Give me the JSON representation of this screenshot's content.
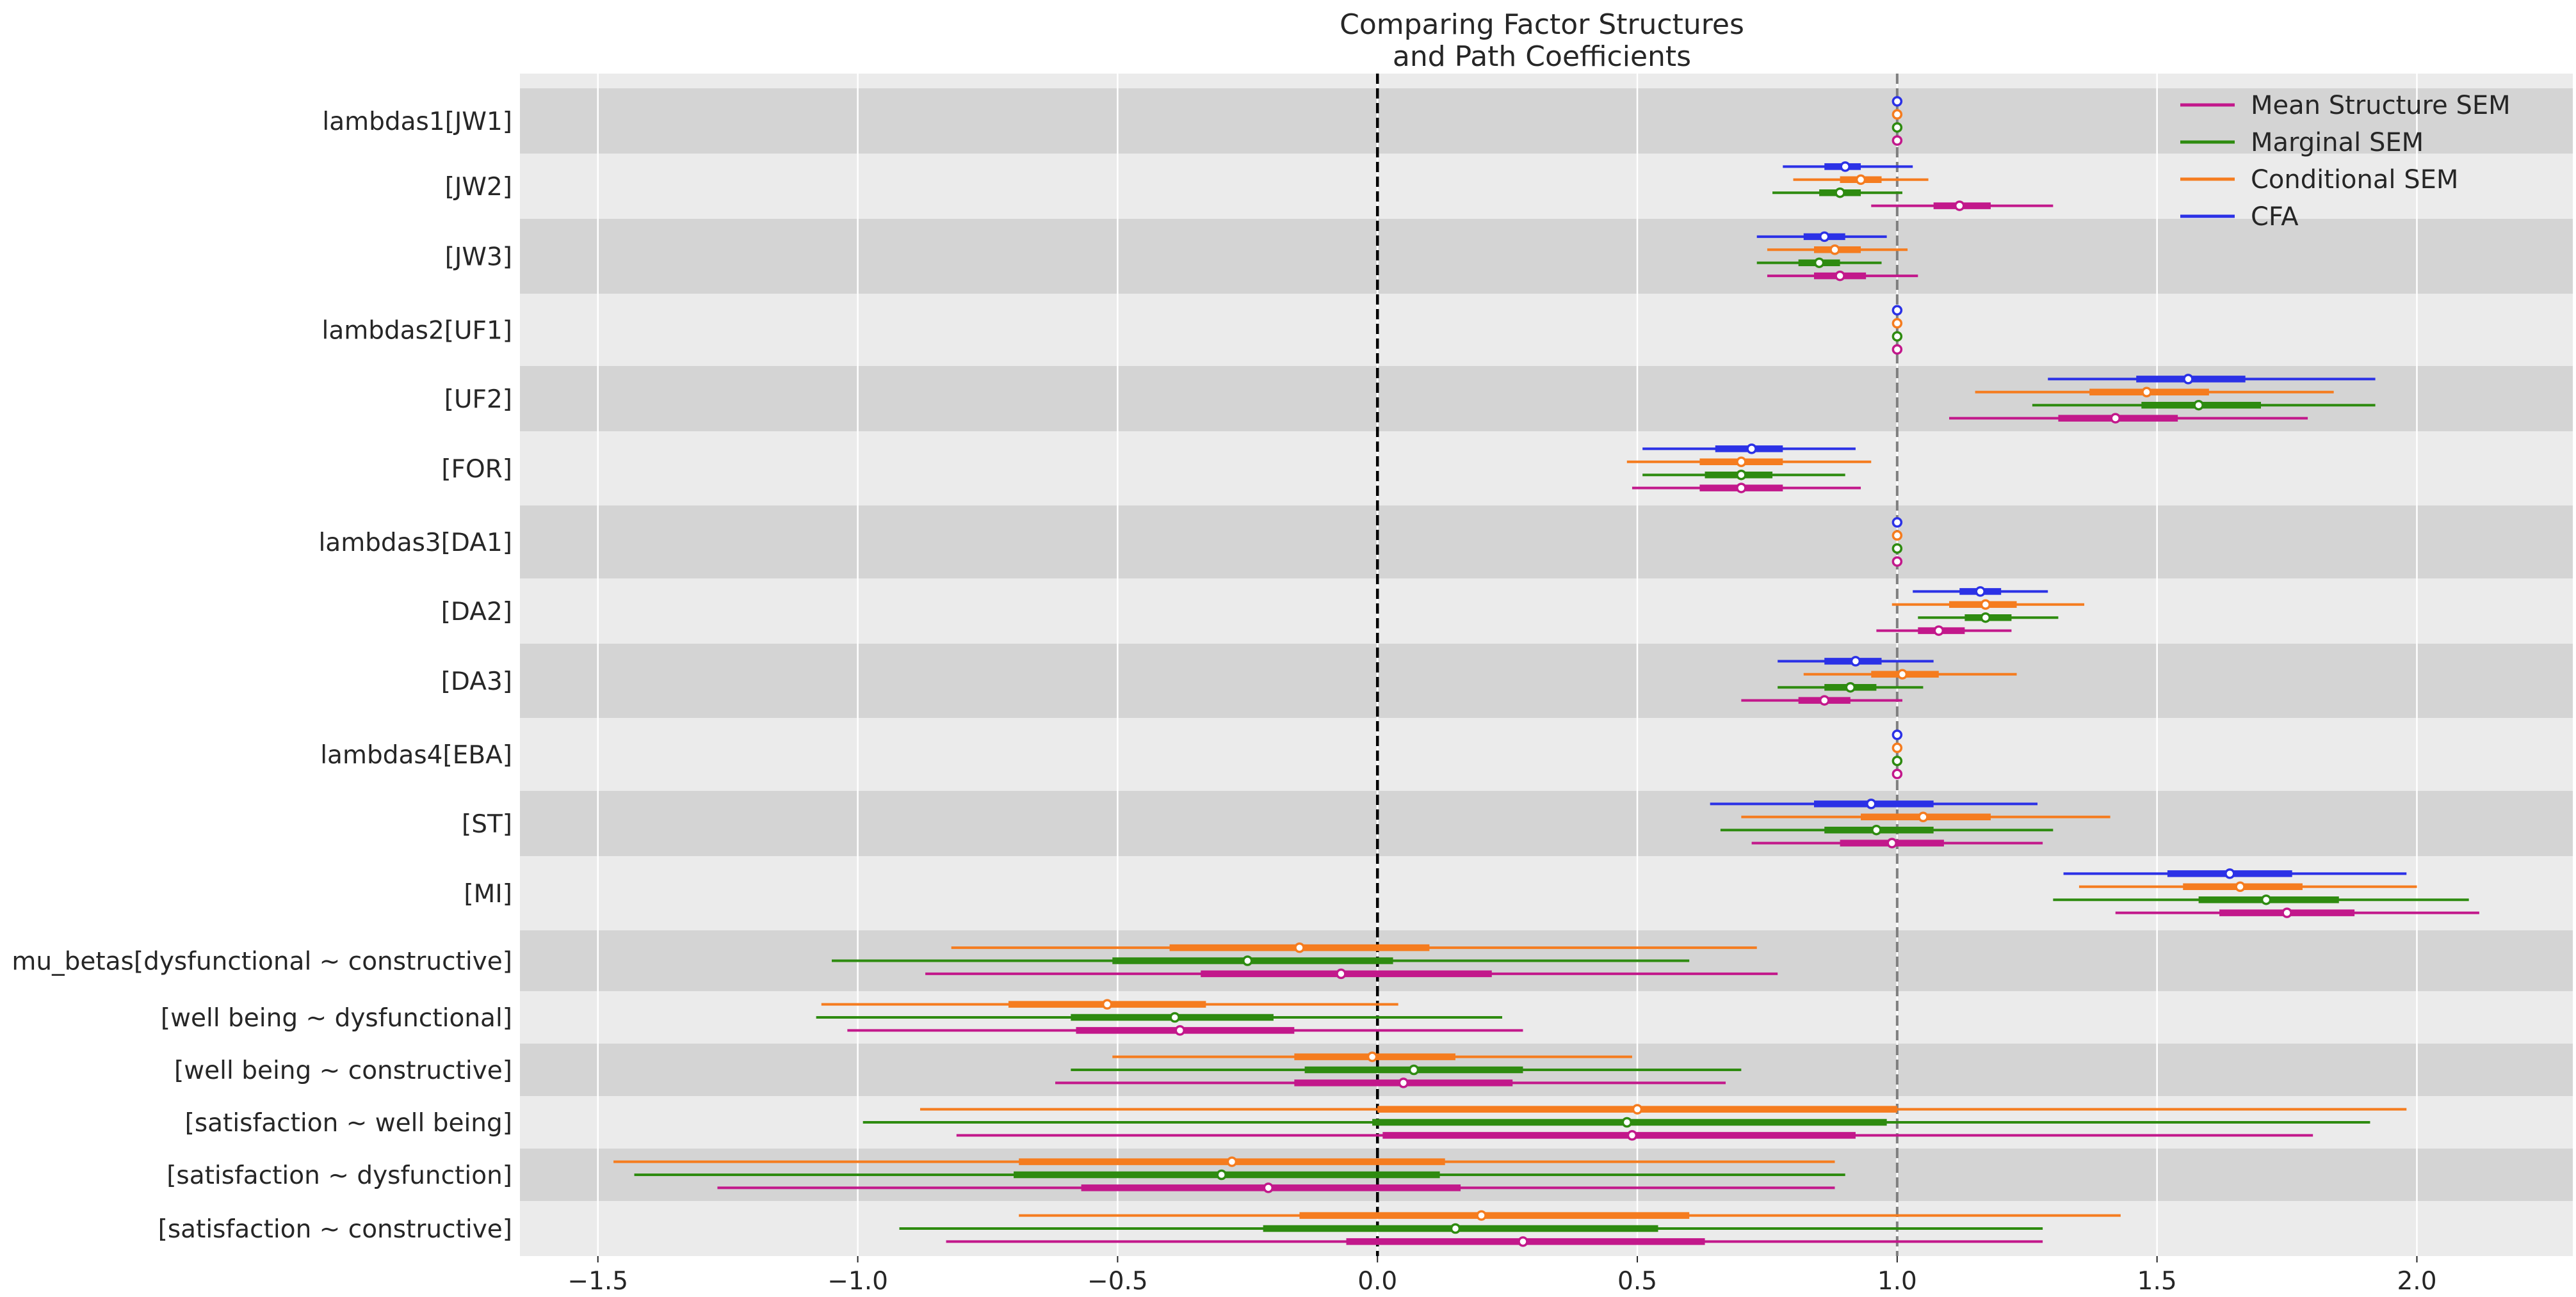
{
  "chart_data": {
    "type": "forest",
    "title": "Comparing Factor Structures\nand Path Coefficients",
    "xlim": [
      -1.65,
      2.3
    ],
    "xticks": [
      -1.5,
      -1.0,
      -0.5,
      0.0,
      0.5,
      1.0,
      1.5,
      2.0
    ],
    "xtick_labels": [
      "−1.5",
      "−1.0",
      "−0.5",
      "0.0",
      "0.5",
      "1.0",
      "1.5",
      "2.0"
    ],
    "reference_lines": [
      {
        "x": 0.0,
        "color": "#000000",
        "style": "dashed"
      },
      {
        "x": 1.0,
        "color": "#7f7f7f",
        "style": "dashed"
      }
    ],
    "grid": true,
    "legend_position": "top-right",
    "series": [
      {
        "name": "Mean Structure SEM",
        "color": "#c2188b"
      },
      {
        "name": "Marginal SEM",
        "color": "#2e8b10"
      },
      {
        "name": "Conditional SEM",
        "color": "#f57c1f"
      },
      {
        "name": "CFA",
        "color": "#2b31e6"
      }
    ],
    "rows": [
      {
        "label": "lambdas1[JW1]",
        "estimates": [
          {
            "series": "CFA",
            "mean": 1.0,
            "hdi94": [
              1.0,
              1.0
            ],
            "iqr": [
              1.0,
              1.0
            ]
          },
          {
            "series": "Conditional SEM",
            "mean": 1.0,
            "hdi94": [
              1.0,
              1.0
            ],
            "iqr": [
              1.0,
              1.0
            ]
          },
          {
            "series": "Marginal SEM",
            "mean": 1.0,
            "hdi94": [
              1.0,
              1.0
            ],
            "iqr": [
              1.0,
              1.0
            ]
          },
          {
            "series": "Mean Structure SEM",
            "mean": 1.0,
            "hdi94": [
              1.0,
              1.0
            ],
            "iqr": [
              1.0,
              1.0
            ]
          }
        ]
      },
      {
        "label": "[JW2]",
        "estimates": [
          {
            "series": "CFA",
            "mean": 0.9,
            "hdi94": [
              0.78,
              1.03
            ],
            "iqr": [
              0.86,
              0.93
            ]
          },
          {
            "series": "Conditional SEM",
            "mean": 0.93,
            "hdi94": [
              0.8,
              1.06
            ],
            "iqr": [
              0.89,
              0.97
            ]
          },
          {
            "series": "Marginal SEM",
            "mean": 0.89,
            "hdi94": [
              0.76,
              1.01
            ],
            "iqr": [
              0.85,
              0.93
            ]
          },
          {
            "series": "Mean Structure SEM",
            "mean": 1.12,
            "hdi94": [
              0.95,
              1.3
            ],
            "iqr": [
              1.07,
              1.18
            ]
          }
        ]
      },
      {
        "label": "[JW3]",
        "estimates": [
          {
            "series": "CFA",
            "mean": 0.86,
            "hdi94": [
              0.73,
              0.98
            ],
            "iqr": [
              0.82,
              0.9
            ]
          },
          {
            "series": "Conditional SEM",
            "mean": 0.88,
            "hdi94": [
              0.75,
              1.02
            ],
            "iqr": [
              0.84,
              0.93
            ]
          },
          {
            "series": "Marginal SEM",
            "mean": 0.85,
            "hdi94": [
              0.73,
              0.97
            ],
            "iqr": [
              0.81,
              0.89
            ]
          },
          {
            "series": "Mean Structure SEM",
            "mean": 0.89,
            "hdi94": [
              0.75,
              1.04
            ],
            "iqr": [
              0.84,
              0.94
            ]
          }
        ]
      },
      {
        "label": "lambdas2[UF1]",
        "estimates": [
          {
            "series": "CFA",
            "mean": 1.0,
            "hdi94": [
              1.0,
              1.0
            ],
            "iqr": [
              1.0,
              1.0
            ]
          },
          {
            "series": "Conditional SEM",
            "mean": 1.0,
            "hdi94": [
              1.0,
              1.0
            ],
            "iqr": [
              1.0,
              1.0
            ]
          },
          {
            "series": "Marginal SEM",
            "mean": 1.0,
            "hdi94": [
              1.0,
              1.0
            ],
            "iqr": [
              1.0,
              1.0
            ]
          },
          {
            "series": "Mean Structure SEM",
            "mean": 1.0,
            "hdi94": [
              1.0,
              1.0
            ],
            "iqr": [
              1.0,
              1.0
            ]
          }
        ]
      },
      {
        "label": "[UF2]",
        "estimates": [
          {
            "series": "CFA",
            "mean": 1.56,
            "hdi94": [
              1.29,
              1.92
            ],
            "iqr": [
              1.46,
              1.67
            ]
          },
          {
            "series": "Conditional SEM",
            "mean": 1.48,
            "hdi94": [
              1.15,
              1.84
            ],
            "iqr": [
              1.37,
              1.6
            ]
          },
          {
            "series": "Marginal SEM",
            "mean": 1.58,
            "hdi94": [
              1.26,
              1.92
            ],
            "iqr": [
              1.47,
              1.7
            ]
          },
          {
            "series": "Mean Structure SEM",
            "mean": 1.42,
            "hdi94": [
              1.1,
              1.79
            ],
            "iqr": [
              1.31,
              1.54
            ]
          }
        ]
      },
      {
        "label": "[FOR]",
        "estimates": [
          {
            "series": "CFA",
            "mean": 0.72,
            "hdi94": [
              0.51,
              0.92
            ],
            "iqr": [
              0.65,
              0.78
            ]
          },
          {
            "series": "Conditional SEM",
            "mean": 0.7,
            "hdi94": [
              0.48,
              0.95
            ],
            "iqr": [
              0.62,
              0.78
            ]
          },
          {
            "series": "Marginal SEM",
            "mean": 0.7,
            "hdi94": [
              0.51,
              0.9
            ],
            "iqr": [
              0.63,
              0.76
            ]
          },
          {
            "series": "Mean Structure SEM",
            "mean": 0.7,
            "hdi94": [
              0.49,
              0.93
            ],
            "iqr": [
              0.62,
              0.78
            ]
          }
        ]
      },
      {
        "label": "lambdas3[DA1]",
        "estimates": [
          {
            "series": "CFA",
            "mean": 1.0,
            "hdi94": [
              1.0,
              1.0
            ],
            "iqr": [
              1.0,
              1.0
            ]
          },
          {
            "series": "Conditional SEM",
            "mean": 1.0,
            "hdi94": [
              1.0,
              1.0
            ],
            "iqr": [
              1.0,
              1.0
            ]
          },
          {
            "series": "Marginal SEM",
            "mean": 1.0,
            "hdi94": [
              1.0,
              1.0
            ],
            "iqr": [
              1.0,
              1.0
            ]
          },
          {
            "series": "Mean Structure SEM",
            "mean": 1.0,
            "hdi94": [
              1.0,
              1.0
            ],
            "iqr": [
              1.0,
              1.0
            ]
          }
        ]
      },
      {
        "label": "[DA2]",
        "estimates": [
          {
            "series": "CFA",
            "mean": 1.16,
            "hdi94": [
              1.03,
              1.29
            ],
            "iqr": [
              1.12,
              1.2
            ]
          },
          {
            "series": "Conditional SEM",
            "mean": 1.17,
            "hdi94": [
              0.99,
              1.36
            ],
            "iqr": [
              1.1,
              1.23
            ]
          },
          {
            "series": "Marginal SEM",
            "mean": 1.17,
            "hdi94": [
              1.04,
              1.31
            ],
            "iqr": [
              1.13,
              1.22
            ]
          },
          {
            "series": "Mean Structure SEM",
            "mean": 1.08,
            "hdi94": [
              0.96,
              1.22
            ],
            "iqr": [
              1.04,
              1.13
            ]
          }
        ]
      },
      {
        "label": "[DA3]",
        "estimates": [
          {
            "series": "CFA",
            "mean": 0.92,
            "hdi94": [
              0.77,
              1.07
            ],
            "iqr": [
              0.86,
              0.97
            ]
          },
          {
            "series": "Conditional SEM",
            "mean": 1.01,
            "hdi94": [
              0.82,
              1.23
            ],
            "iqr": [
              0.95,
              1.08
            ]
          },
          {
            "series": "Marginal SEM",
            "mean": 0.91,
            "hdi94": [
              0.77,
              1.05
            ],
            "iqr": [
              0.86,
              0.96
            ]
          },
          {
            "series": "Mean Structure SEM",
            "mean": 0.86,
            "hdi94": [
              0.7,
              1.01
            ],
            "iqr": [
              0.81,
              0.91
            ]
          }
        ]
      },
      {
        "label": "lambdas4[EBA]",
        "estimates": [
          {
            "series": "CFA",
            "mean": 1.0,
            "hdi94": [
              1.0,
              1.0
            ],
            "iqr": [
              1.0,
              1.0
            ]
          },
          {
            "series": "Conditional SEM",
            "mean": 1.0,
            "hdi94": [
              1.0,
              1.0
            ],
            "iqr": [
              1.0,
              1.0
            ]
          },
          {
            "series": "Marginal SEM",
            "mean": 1.0,
            "hdi94": [
              1.0,
              1.0
            ],
            "iqr": [
              1.0,
              1.0
            ]
          },
          {
            "series": "Mean Structure SEM",
            "mean": 1.0,
            "hdi94": [
              1.0,
              1.0
            ],
            "iqr": [
              1.0,
              1.0
            ]
          }
        ]
      },
      {
        "label": "[ST]",
        "estimates": [
          {
            "series": "CFA",
            "mean": 0.95,
            "hdi94": [
              0.64,
              1.27
            ],
            "iqr": [
              0.84,
              1.07
            ]
          },
          {
            "series": "Conditional SEM",
            "mean": 1.05,
            "hdi94": [
              0.7,
              1.41
            ],
            "iqr": [
              0.93,
              1.18
            ]
          },
          {
            "series": "Marginal SEM",
            "mean": 0.96,
            "hdi94": [
              0.66,
              1.3
            ],
            "iqr": [
              0.86,
              1.07
            ]
          },
          {
            "series": "Mean Structure SEM",
            "mean": 0.99,
            "hdi94": [
              0.72,
              1.28
            ],
            "iqr": [
              0.89,
              1.09
            ]
          }
        ]
      },
      {
        "label": "[MI]",
        "estimates": [
          {
            "series": "CFA",
            "mean": 1.64,
            "hdi94": [
              1.32,
              1.98
            ],
            "iqr": [
              1.52,
              1.76
            ]
          },
          {
            "series": "Conditional SEM",
            "mean": 1.66,
            "hdi94": [
              1.35,
              2.0
            ],
            "iqr": [
              1.55,
              1.78
            ]
          },
          {
            "series": "Marginal SEM",
            "mean": 1.71,
            "hdi94": [
              1.3,
              2.1
            ],
            "iqr": [
              1.58,
              1.85
            ]
          },
          {
            "series": "Mean Structure SEM",
            "mean": 1.75,
            "hdi94": [
              1.42,
              2.12
            ],
            "iqr": [
              1.62,
              1.88
            ]
          }
        ]
      },
      {
        "label": "mu_betas[dysfunctional ~ constructive]",
        "estimates": [
          {
            "series": "Conditional SEM",
            "mean": -0.15,
            "hdi94": [
              -0.82,
              0.73
            ],
            "iqr": [
              -0.4,
              0.1
            ]
          },
          {
            "series": "Marginal SEM",
            "mean": -0.25,
            "hdi94": [
              -1.05,
              0.6
            ],
            "iqr": [
              -0.51,
              0.03
            ]
          },
          {
            "series": "Mean Structure SEM",
            "mean": -0.07,
            "hdi94": [
              -0.87,
              0.77
            ],
            "iqr": [
              -0.34,
              0.22
            ]
          }
        ]
      },
      {
        "label": "[well being ~ dysfunctional]",
        "estimates": [
          {
            "series": "Conditional SEM",
            "mean": -0.52,
            "hdi94": [
              -1.07,
              0.04
            ],
            "iqr": [
              -0.71,
              -0.33
            ]
          },
          {
            "series": "Marginal SEM",
            "mean": -0.39,
            "hdi94": [
              -1.08,
              0.24
            ],
            "iqr": [
              -0.59,
              -0.2
            ]
          },
          {
            "series": "Mean Structure SEM",
            "mean": -0.38,
            "hdi94": [
              -1.02,
              0.28
            ],
            "iqr": [
              -0.58,
              -0.16
            ]
          }
        ]
      },
      {
        "label": "[well being ~ constructive]",
        "estimates": [
          {
            "series": "Conditional SEM",
            "mean": -0.01,
            "hdi94": [
              -0.51,
              0.49
            ],
            "iqr": [
              -0.16,
              0.15
            ]
          },
          {
            "series": "Marginal SEM",
            "mean": 0.07,
            "hdi94": [
              -0.59,
              0.7
            ],
            "iqr": [
              -0.14,
              0.28
            ]
          },
          {
            "series": "Mean Structure SEM",
            "mean": 0.05,
            "hdi94": [
              -0.62,
              0.67
            ],
            "iqr": [
              -0.16,
              0.26
            ]
          }
        ]
      },
      {
        "label": "[satisfaction ~ well being]",
        "estimates": [
          {
            "series": "Conditional SEM",
            "mean": 0.5,
            "hdi94": [
              -0.88,
              1.98
            ],
            "iqr": [
              0.0,
              1.0
            ]
          },
          {
            "series": "Marginal SEM",
            "mean": 0.48,
            "hdi94": [
              -0.99,
              1.91
            ],
            "iqr": [
              -0.01,
              0.98
            ]
          },
          {
            "series": "Mean Structure SEM",
            "mean": 0.49,
            "hdi94": [
              -0.81,
              1.8
            ],
            "iqr": [
              0.01,
              0.92
            ]
          }
        ]
      },
      {
        "label": "[satisfaction ~ dysfunction]",
        "estimates": [
          {
            "series": "Conditional SEM",
            "mean": -0.28,
            "hdi94": [
              -1.47,
              0.88
            ],
            "iqr": [
              -0.69,
              0.13
            ]
          },
          {
            "series": "Marginal SEM",
            "mean": -0.3,
            "hdi94": [
              -1.43,
              0.9
            ],
            "iqr": [
              -0.7,
              0.12
            ]
          },
          {
            "series": "Mean Structure SEM",
            "mean": -0.21,
            "hdi94": [
              -1.27,
              0.88
            ],
            "iqr": [
              -0.57,
              0.16
            ]
          }
        ]
      },
      {
        "label": "[satisfaction ~ constructive]",
        "estimates": [
          {
            "series": "Conditional SEM",
            "mean": 0.2,
            "hdi94": [
              -0.69,
              1.43
            ],
            "iqr": [
              -0.15,
              0.6
            ]
          },
          {
            "series": "Marginal SEM",
            "mean": 0.15,
            "hdi94": [
              -0.92,
              1.28
            ],
            "iqr": [
              -0.22,
              0.54
            ]
          },
          {
            "series": "Mean Structure SEM",
            "mean": 0.28,
            "hdi94": [
              -0.83,
              1.28
            ],
            "iqr": [
              -0.06,
              0.63
            ]
          }
        ]
      }
    ]
  }
}
